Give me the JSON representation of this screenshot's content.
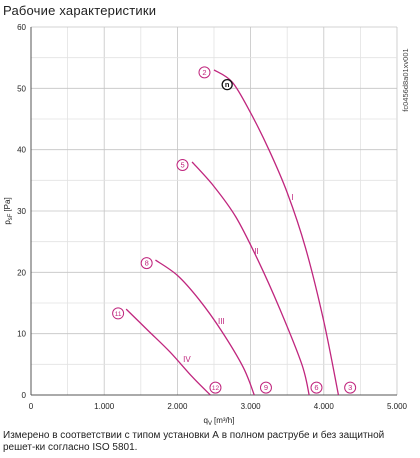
{
  "title": "Рабочие характеристики",
  "code_label": "fc0456d8a01xv001",
  "footnote": "Измерено в соответствии с типом установки А в полном раструбе и без защитной решет-ки согласно ISO 5801.",
  "chart_data": {
    "type": "line",
    "xlabel": "q",
    "xlabel_sub": "V",
    "xlabel_unit": "[m³/h]",
    "ylabel": "p",
    "ylabel_sub": "sF",
    "ylabel_unit": "[Pa]",
    "xlim": [
      0,
      5000
    ],
    "ylim": [
      0,
      60
    ],
    "xticks": [
      0,
      1000,
      2000,
      3000,
      4000,
      5000
    ],
    "xtick_labels": [
      "0",
      "1.000",
      "2.000",
      "3.000",
      "4.000",
      "5.000"
    ],
    "yticks": [
      0,
      10,
      20,
      30,
      40,
      50,
      60
    ],
    "ytick_labels": [
      "0",
      "10",
      "20",
      "30",
      "40",
      "50",
      "60"
    ],
    "grid": true,
    "series_color": "#c0267e",
    "series": [
      {
        "name": "I",
        "label_at": [
          3570,
          31.8
        ],
        "x": [
          2500,
          2750,
          3000,
          3250,
          3500,
          3750,
          4000,
          4200
        ],
        "y": [
          53,
          51,
          46,
          40,
          33,
          24,
          12,
          0
        ]
      },
      {
        "name": "II",
        "label_at": [
          3080,
          23
        ],
        "x": [
          2200,
          2500,
          2800,
          3100,
          3400,
          3700,
          3800
        ],
        "y": [
          38,
          34,
          29,
          22,
          14,
          5,
          0
        ]
      },
      {
        "name": "III",
        "label_at": [
          2600,
          11.6
        ],
        "x": [
          1700,
          2000,
          2300,
          2600,
          2900,
          3050
        ],
        "y": [
          22,
          19.5,
          15.5,
          10.5,
          4.5,
          0
        ]
      },
      {
        "name": "IV",
        "label_at": [
          2130,
          5.4
        ],
        "x": [
          1300,
          1600,
          1900,
          2200,
          2450
        ],
        "y": [
          14,
          10.5,
          7,
          3,
          0
        ]
      }
    ],
    "markers": [
      {
        "label": "2",
        "x": 2370,
        "y": 52.6
      },
      {
        "label": "5",
        "x": 2070,
        "y": 37.5
      },
      {
        "label": "8",
        "x": 1580,
        "y": 21.5
      },
      {
        "label": "11",
        "x": 1190,
        "y": 13.3
      },
      {
        "label": "3",
        "x": 4360,
        "y": 1.2
      },
      {
        "label": "6",
        "x": 3900,
        "y": 1.2
      },
      {
        "label": "9",
        "x": 3210,
        "y": 1.2
      },
      {
        "label": "12",
        "x": 2520,
        "y": 1.2
      }
    ],
    "point_marker": {
      "label": "n",
      "x": 2680,
      "y": 50.6
    }
  }
}
